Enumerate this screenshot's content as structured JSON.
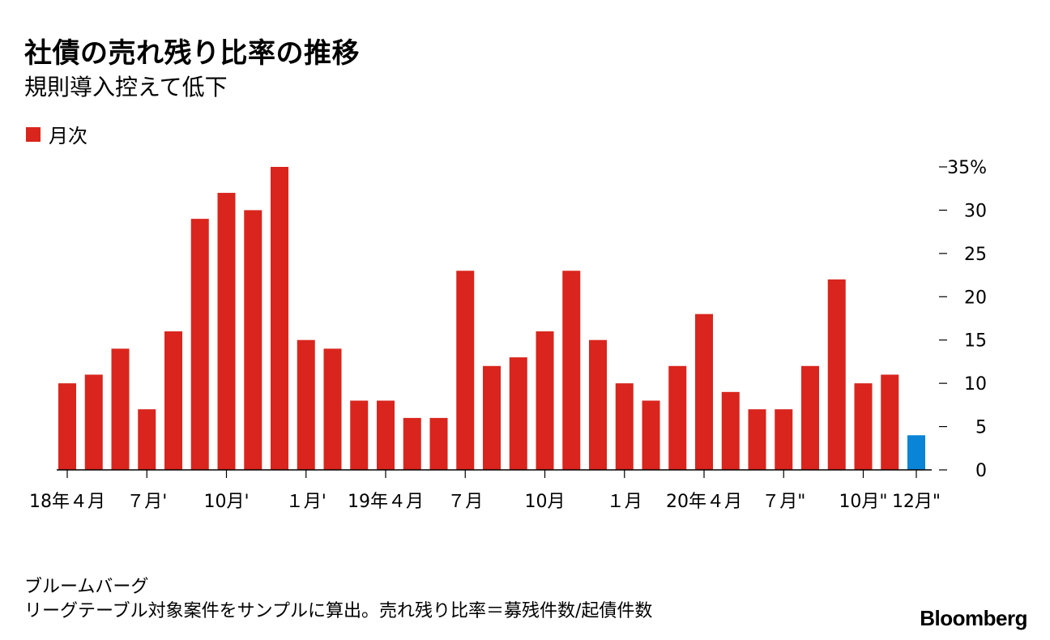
{
  "title": "社債の売れ残り比率の推移",
  "subtitle": "規則導入控えて低下",
  "legend": {
    "label": "月次",
    "color": "#d9251d"
  },
  "source": "ブルームバーグ",
  "note": "リーグテーブル対象案件をサンプルに算出。売れ残り比率＝募残件数/起債件数",
  "brand": "Bloomberg",
  "colors": {
    "bar": "#d9251d",
    "highlight": "#0a84d6"
  },
  "chart_data": {
    "type": "bar",
    "title": "社債の売れ残り比率の推移",
    "subtitle": "規則導入控えて低下",
    "xlabel": "",
    "ylabel": "",
    "ylim": [
      0,
      35
    ],
    "y_ticks": [
      "0",
      "5",
      "10",
      "15",
      "20",
      "25",
      "30",
      "35%"
    ],
    "y_tick_values": [
      0,
      5,
      10,
      15,
      20,
      25,
      30,
      35
    ],
    "x_tick_labels": [
      {
        "index": 0,
        "label": "18年４月"
      },
      {
        "index": 3,
        "label": "７月'"
      },
      {
        "index": 6,
        "label": "10月'"
      },
      {
        "index": 9,
        "label": "１月'"
      },
      {
        "index": 12,
        "label": "19年４月"
      },
      {
        "index": 15,
        "label": "７月"
      },
      {
        "index": 18,
        "label": "10月"
      },
      {
        "index": 21,
        "label": "１月"
      },
      {
        "index": 24,
        "label": "20年４月"
      },
      {
        "index": 27,
        "label": "７月\""
      },
      {
        "index": 30,
        "label": "10月\""
      },
      {
        "index": 32,
        "label": "12月\""
      }
    ],
    "series": [
      {
        "name": "月次",
        "values": [
          10,
          11,
          14,
          7,
          16,
          29,
          32,
          30,
          35,
          15,
          14,
          8,
          8,
          6,
          6,
          23,
          12,
          13,
          16,
          23,
          15,
          10,
          8,
          12,
          18,
          9,
          7,
          7,
          12,
          22,
          10,
          11,
          4
        ],
        "highlight_last": true
      }
    ],
    "grid": false,
    "legend_position": "top-left"
  }
}
